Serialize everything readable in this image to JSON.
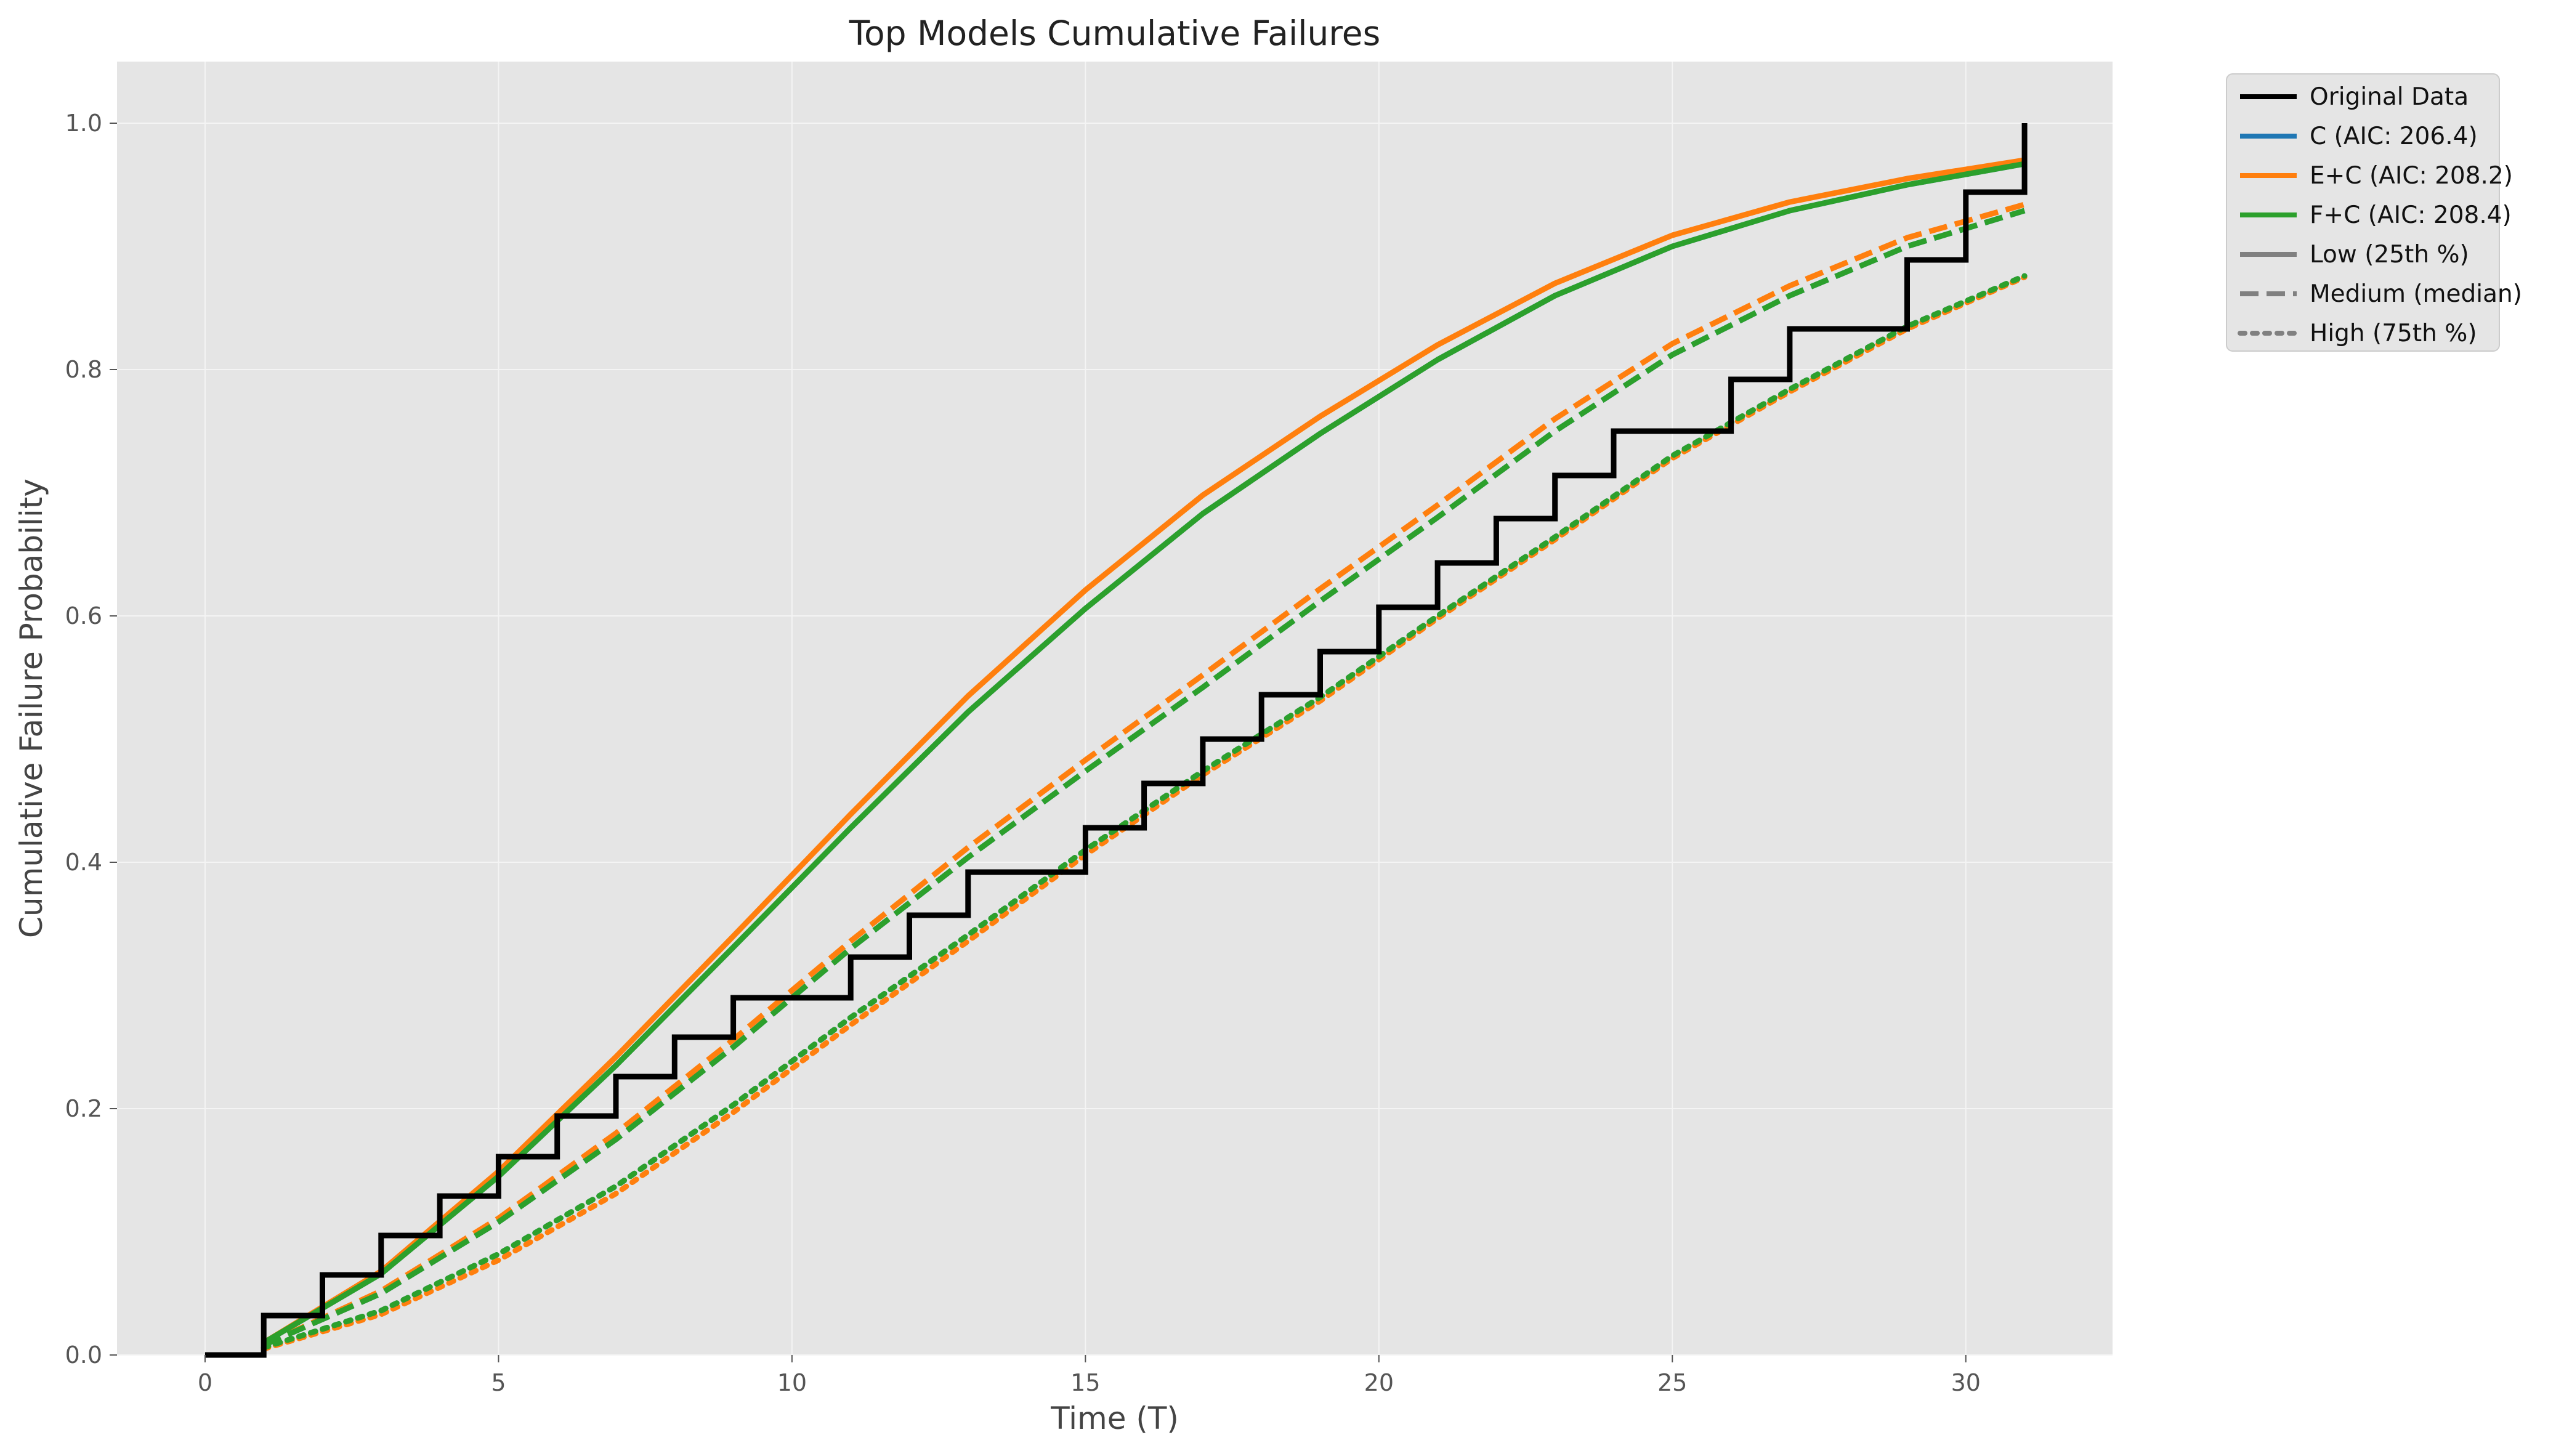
{
  "chart_data": {
    "type": "line",
    "title": "Top Models Cumulative Failures",
    "xlabel": "Time (T)",
    "ylabel": "Cumulative Failure Probability",
    "xlim": [
      -1.5,
      32.5
    ],
    "ylim": [
      0,
      1.05
    ],
    "xticks": [
      0,
      5,
      10,
      15,
      20,
      25,
      30
    ],
    "yticks": [
      0.0,
      0.2,
      0.4,
      0.6,
      0.8,
      1.0
    ],
    "grid": true,
    "legend_position": "outside-top-right",
    "colors": {
      "plot_background": "#e5e5e5",
      "grid": "#f4f4f4",
      "original": "#000000",
      "C": "#1f77b4",
      "E+C": "#ff7f0e",
      "F+C": "#2ca02c",
      "style_key": "#808080"
    },
    "original_data": {
      "name": "Original Data",
      "style": "step",
      "x": [
        0,
        1,
        2,
        3,
        4,
        5,
        6,
        7,
        8,
        9,
        10,
        11,
        12,
        13,
        14,
        15,
        16,
        17,
        18,
        19,
        20,
        21,
        22,
        23,
        24,
        25,
        26,
        27,
        28,
        29,
        30,
        31
      ],
      "y": [
        0.0,
        0.032,
        0.065,
        0.097,
        0.129,
        0.161,
        0.194,
        0.226,
        0.258,
        0.29,
        0.29,
        0.323,
        0.357,
        0.392,
        0.392,
        0.428,
        0.464,
        0.5,
        0.536,
        0.571,
        0.607,
        0.643,
        0.679,
        0.714,
        0.75,
        0.75,
        0.792,
        0.833,
        0.833,
        0.889,
        0.944,
        1.0
      ]
    },
    "models": [
      {
        "name": "C (AIC: 206.4)",
        "color": "#1f77b4",
        "curves": {
          "low": {
            "x": [
              1,
              3,
              5,
              7,
              9,
              11,
              13,
              15,
              17,
              19,
              21,
              23,
              25,
              27,
              29,
              31
            ],
            "y": [
              0.01,
              0.066,
              0.145,
              0.235,
              0.331,
              0.428,
              0.522,
              0.606,
              0.683,
              0.748,
              0.808,
              0.86,
              0.9,
              0.929,
              0.95,
              0.967
            ]
          },
          "medium": {
            "x": [
              1,
              3,
              5,
              7,
              9,
              11,
              13,
              15,
              17,
              19,
              21,
              23,
              25,
              27,
              29,
              31
            ],
            "y": [
              0.008,
              0.05,
              0.108,
              0.175,
              0.25,
              0.33,
              0.404,
              0.474,
              0.542,
              0.612,
              0.68,
              0.75,
              0.812,
              0.86,
              0.9,
              0.929
            ]
          },
          "high": {
            "x": [
              1,
              3,
              5,
              7,
              9,
              11,
              13,
              15,
              17,
              19,
              21,
              23,
              25,
              27,
              29,
              31
            ],
            "y": [
              0.006,
              0.036,
              0.082,
              0.137,
              0.203,
              0.274,
              0.341,
              0.41,
              0.474,
              0.534,
              0.6,
              0.664,
              0.73,
              0.784,
              0.835,
              0.876
            ]
          }
        }
      },
      {
        "name": "E+C (AIC: 208.2)",
        "color": "#ff7f0e",
        "curves": {
          "low": {
            "x": [
              1,
              3,
              5,
              7,
              9,
              11,
              13,
              15,
              17,
              19,
              21,
              23,
              25,
              27,
              29,
              31
            ],
            "y": [
              0.01,
              0.068,
              0.149,
              0.242,
              0.34,
              0.439,
              0.535,
              0.621,
              0.698,
              0.762,
              0.82,
              0.87,
              0.909,
              0.936,
              0.955,
              0.97
            ]
          },
          "medium": {
            "x": [
              1,
              3,
              5,
              7,
              9,
              11,
              13,
              15,
              17,
              19,
              21,
              23,
              25,
              27,
              29,
              31
            ],
            "y": [
              0.008,
              0.052,
              0.111,
              0.18,
              0.256,
              0.336,
              0.412,
              0.483,
              0.552,
              0.622,
              0.69,
              0.76,
              0.821,
              0.868,
              0.907,
              0.934
            ]
          },
          "high": {
            "x": [
              1,
              3,
              5,
              7,
              9,
              11,
              13,
              15,
              17,
              19,
              21,
              23,
              25,
              27,
              29,
              31
            ],
            "y": [
              0.005,
              0.033,
              0.077,
              0.131,
              0.197,
              0.268,
              0.336,
              0.406,
              0.471,
              0.531,
              0.598,
              0.662,
              0.728,
              0.782,
              0.833,
              0.875
            ]
          }
        }
      },
      {
        "name": "F+C (AIC: 208.4)",
        "color": "#2ca02c",
        "curves": {
          "low": {
            "x": [
              1,
              3,
              5,
              7,
              9,
              11,
              13,
              15,
              17,
              19,
              21,
              23,
              25,
              27,
              29,
              31
            ],
            "y": [
              0.01,
              0.066,
              0.145,
              0.235,
              0.331,
              0.428,
              0.522,
              0.606,
              0.683,
              0.748,
              0.808,
              0.86,
              0.9,
              0.929,
              0.95,
              0.967
            ]
          },
          "medium": {
            "x": [
              1,
              3,
              5,
              7,
              9,
              11,
              13,
              15,
              17,
              19,
              21,
              23,
              25,
              27,
              29,
              31
            ],
            "y": [
              0.008,
              0.05,
              0.108,
              0.175,
              0.25,
              0.33,
              0.404,
              0.474,
              0.542,
              0.612,
              0.68,
              0.75,
              0.812,
              0.86,
              0.9,
              0.929
            ]
          },
          "high": {
            "x": [
              1,
              3,
              5,
              7,
              9,
              11,
              13,
              15,
              17,
              19,
              21,
              23,
              25,
              27,
              29,
              31
            ],
            "y": [
              0.006,
              0.036,
              0.082,
              0.137,
              0.203,
              0.274,
              0.341,
              0.41,
              0.474,
              0.534,
              0.6,
              0.664,
              0.73,
              0.784,
              0.835,
              0.876
            ]
          }
        }
      }
    ],
    "legend": [
      {
        "label": "Original Data",
        "color": "#000000",
        "dash": "solid"
      },
      {
        "label": "C (AIC: 206.4)",
        "color": "#1f77b4",
        "dash": "solid"
      },
      {
        "label": "E+C (AIC: 208.2)",
        "color": "#ff7f0e",
        "dash": "solid"
      },
      {
        "label": "F+C (AIC: 208.4)",
        "color": "#2ca02c",
        "dash": "solid"
      },
      {
        "label": "Low (25th %)",
        "color": "#808080",
        "dash": "solid"
      },
      {
        "label": "Medium (median)",
        "color": "#808080",
        "dash": "dashed"
      },
      {
        "label": "High (75th %)",
        "color": "#808080",
        "dash": "dotted"
      }
    ]
  }
}
